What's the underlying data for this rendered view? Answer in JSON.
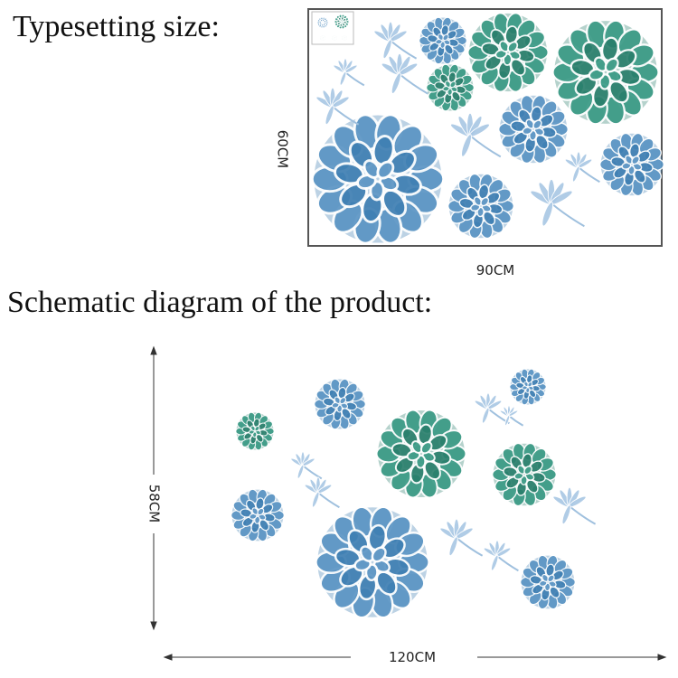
{
  "sections": [
    {
      "title": "Typesetting size:",
      "height": "60CM",
      "width": "90CM"
    },
    {
      "title": "Schematic diagram of the product:",
      "height": "58CM",
      "width": "120CM"
    }
  ]
}
